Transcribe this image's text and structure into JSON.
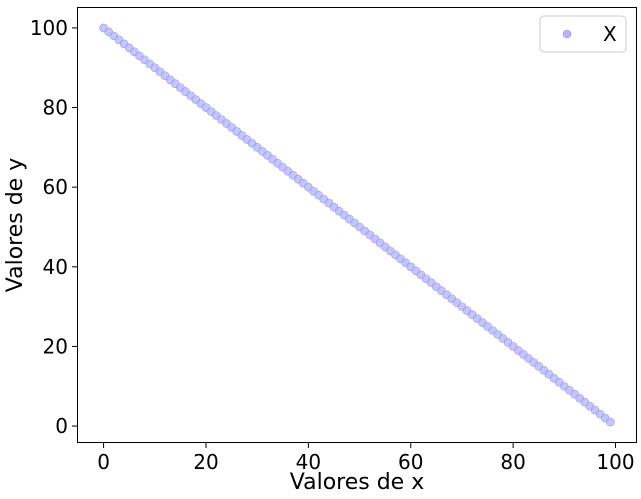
{
  "chart_data": {
    "type": "scatter",
    "title": "",
    "xlabel": "Valores de x",
    "ylabel": "Valores de y",
    "xlim": [
      -5,
      104
    ],
    "ylim": [
      -4,
      105
    ],
    "xticks": [
      0,
      20,
      40,
      60,
      80,
      100
    ],
    "yticks": [
      0,
      20,
      40,
      60,
      80,
      100
    ],
    "xtick_labels": [
      "0",
      "20",
      "40",
      "60",
      "80",
      "100"
    ],
    "ytick_labels": [
      "0",
      "20",
      "40",
      "60",
      "80",
      "100"
    ],
    "grid": false,
    "legend_placement": "top-right",
    "series": [
      {
        "name": "X",
        "color": "#b3b3ff",
        "marker": "circle",
        "x": [
          0,
          1,
          2,
          3,
          4,
          5,
          6,
          7,
          8,
          9,
          10,
          11,
          12,
          13,
          14,
          15,
          16,
          17,
          18,
          19,
          20,
          21,
          22,
          23,
          24,
          25,
          26,
          27,
          28,
          29,
          30,
          31,
          32,
          33,
          34,
          35,
          36,
          37,
          38,
          39,
          40,
          41,
          42,
          43,
          44,
          45,
          46,
          47,
          48,
          49,
          50,
          51,
          52,
          53,
          54,
          55,
          56,
          57,
          58,
          59,
          60,
          61,
          62,
          63,
          64,
          65,
          66,
          67,
          68,
          69,
          70,
          71,
          72,
          73,
          74,
          75,
          76,
          77,
          78,
          79,
          80,
          81,
          82,
          83,
          84,
          85,
          86,
          87,
          88,
          89,
          90,
          91,
          92,
          93,
          94,
          95,
          96,
          97,
          98,
          99
        ],
        "y": [
          100,
          99,
          98,
          97,
          96,
          95,
          94,
          93,
          92,
          91,
          90,
          89,
          88,
          87,
          86,
          85,
          84,
          83,
          82,
          81,
          80,
          79,
          78,
          77,
          76,
          75,
          74,
          73,
          72,
          71,
          70,
          69,
          68,
          67,
          66,
          65,
          64,
          63,
          62,
          61,
          60,
          59,
          58,
          57,
          56,
          55,
          54,
          53,
          52,
          51,
          50,
          49,
          48,
          47,
          46,
          45,
          44,
          43,
          42,
          41,
          40,
          39,
          38,
          37,
          36,
          35,
          34,
          33,
          32,
          31,
          30,
          29,
          28,
          27,
          26,
          25,
          24,
          23,
          22,
          21,
          20,
          19,
          18,
          17,
          16,
          15,
          14,
          13,
          12,
          11,
          10,
          9,
          8,
          7,
          6,
          5,
          4,
          3,
          2,
          1
        ]
      }
    ]
  }
}
